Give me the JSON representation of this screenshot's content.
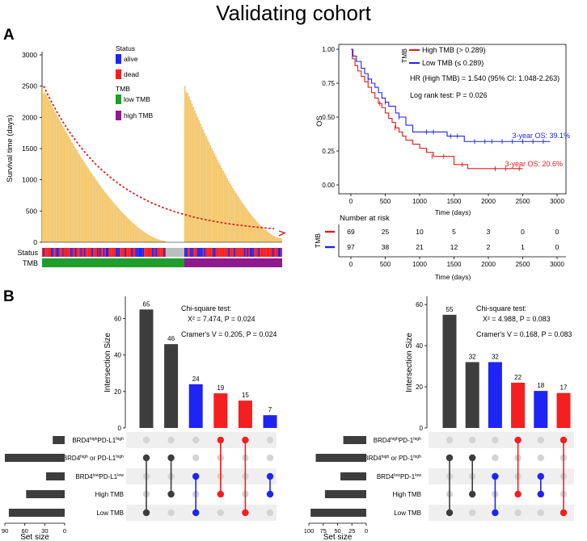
{
  "figure": {
    "title": "Validating cohort",
    "panel_a_label": "A",
    "panel_b_label": "B"
  },
  "colors": {
    "gold": "#f7c96a",
    "gold_edge": "#e8b24a",
    "alive": "#1f24f5",
    "dead": "#f51f1f",
    "low_tmb": "#1f9e2c",
    "high_tmb": "#8e1a8e",
    "dark_bar": "#3d3d3d",
    "km_high": "#e31a1c",
    "km_low": "#1f24f5",
    "dot_grey": "#d4d4d4",
    "row_band": "#efefef"
  },
  "chart_data": [
    {
      "id": "survival_waterfall",
      "type": "bar",
      "ylabel": "Survival time (days)",
      "y_ticks": [
        "0",
        "500",
        "1000",
        "1500",
        "2000",
        "2500",
        "3000"
      ],
      "ylim": [
        0,
        3000
      ],
      "annotation_labels": {
        "status": "Status",
        "tmb": "TMB"
      },
      "legend": {
        "status_title": "Status",
        "alive": "alive",
        "dead": "dead",
        "tmb_title": "TMB",
        "low": "low TMB",
        "high": "high TMB"
      },
      "groups": [
        {
          "name": "low TMB",
          "n": 97,
          "max": 2480,
          "min": 20
        },
        {
          "name": "high TMB",
          "n": 69,
          "max": 2500,
          "min": 60
        }
      ],
      "trend": "decreasing dotted red curve with arrow"
    },
    {
      "id": "km_curve",
      "type": "line",
      "xlabel": "Time (days)",
      "ylabel": "OS",
      "x_ticks": [
        "0",
        "500",
        "1000",
        "1500",
        "2000",
        "2500",
        "3000"
      ],
      "y_ticks": [
        "0.00",
        "0.25",
        "0.50",
        "0.75",
        "1.00"
      ],
      "xlim": [
        0,
        3000
      ],
      "ylim": [
        0,
        1
      ],
      "legend_title": "TMB",
      "series": [
        {
          "name": "High TMB (> 0.289)",
          "points": [
            [
              0,
              1.0
            ],
            [
              20,
              0.93
            ],
            [
              60,
              0.88
            ],
            [
              100,
              0.84
            ],
            [
              150,
              0.8
            ],
            [
              200,
              0.76
            ],
            [
              250,
              0.72
            ],
            [
              300,
              0.68
            ],
            [
              350,
              0.64
            ],
            [
              400,
              0.6
            ],
            [
              450,
              0.57
            ],
            [
              500,
              0.53
            ],
            [
              550,
              0.49
            ],
            [
              600,
              0.46
            ],
            [
              650,
              0.42
            ],
            [
              700,
              0.39
            ],
            [
              750,
              0.36
            ],
            [
              800,
              0.33
            ],
            [
              900,
              0.3
            ],
            [
              1000,
              0.27
            ],
            [
              1100,
              0.24
            ],
            [
              1200,
              0.21
            ],
            [
              1400,
              0.21
            ],
            [
              1500,
              0.15
            ],
            [
              1650,
              0.15
            ],
            [
              1700,
              0.12
            ],
            [
              2500,
              0.12
            ]
          ],
          "censors": [
            [
              420,
              0.6
            ],
            [
              640,
              0.42
            ],
            [
              1180,
              0.21
            ],
            [
              1350,
              0.21
            ],
            [
              1620,
              0.15
            ],
            [
              2100,
              0.12
            ],
            [
              2250,
              0.12
            ],
            [
              2450,
              0.12
            ]
          ],
          "annotation": "3-year OS: 20.6%"
        },
        {
          "name": "Low TMB (≤ 0.289)",
          "points": [
            [
              0,
              1.0
            ],
            [
              30,
              0.95
            ],
            [
              80,
              0.91
            ],
            [
              150,
              0.86
            ],
            [
              200,
              0.82
            ],
            [
              250,
              0.78
            ],
            [
              300,
              0.75
            ],
            [
              350,
              0.72
            ],
            [
              400,
              0.68
            ],
            [
              450,
              0.64
            ],
            [
              500,
              0.61
            ],
            [
              550,
              0.58
            ],
            [
              650,
              0.53
            ],
            [
              700,
              0.5
            ],
            [
              800,
              0.44
            ],
            [
              900,
              0.39
            ],
            [
              1350,
              0.39
            ],
            [
              1400,
              0.36
            ],
            [
              1600,
              0.36
            ],
            [
              1650,
              0.32
            ],
            [
              2900,
              0.32
            ]
          ],
          "censors": [
            [
              250,
              0.78
            ],
            [
              500,
              0.61
            ],
            [
              700,
              0.5
            ],
            [
              1100,
              0.39
            ],
            [
              1200,
              0.39
            ],
            [
              1450,
              0.36
            ],
            [
              1550,
              0.36
            ],
            [
              1800,
              0.32
            ],
            [
              1950,
              0.32
            ],
            [
              2050,
              0.32
            ],
            [
              2200,
              0.32
            ],
            [
              2350,
              0.32
            ],
            [
              2500,
              0.32
            ],
            [
              2650,
              0.32
            ],
            [
              2800,
              0.32
            ]
          ],
          "annotation": "3-year OS: 39.1%"
        }
      ],
      "stats": {
        "hr": "HR (High TMB) = 1.540 (95% CI: 1.048-2.263)",
        "logrank": "Log rank test: P = 0.026"
      },
      "risk_table": {
        "title": "Number at risk",
        "ylabel": "TMB",
        "xlabel": "Time (days)",
        "x_ticks": [
          "0",
          "500",
          "1000",
          "1500",
          "2000",
          "2500",
          "3000"
        ],
        "rows": [
          {
            "name": "High TMB",
            "values": [
              "69",
              "25",
              "10",
              "5",
              "3",
              "0",
              "0"
            ]
          },
          {
            "name": "Low TMB",
            "values": [
              "97",
              "38",
              "21",
              "12",
              "2",
              "1",
              "0"
            ]
          }
        ]
      }
    },
    {
      "id": "upset_pdl1",
      "type": "bar",
      "ylabel": "Intersection Size",
      "y_ticks": [
        "0",
        "20",
        "40",
        "60"
      ],
      "ylim": [
        0,
        70
      ],
      "values": [
        65,
        46,
        24,
        19,
        15,
        7
      ],
      "value_labels": [
        "65",
        "46",
        "24",
        "19",
        "15",
        "7"
      ],
      "bar_colors": [
        "dark",
        "dark",
        "blue",
        "red",
        "red",
        "blue"
      ],
      "stats": [
        "Chi-square test:",
        "X² = 7.474, P = 0.024",
        "Cramer's V = 0.205, P = 0.024"
      ],
      "set_size_label": "Set size",
      "set_size_ticks": [
        "90",
        "60",
        "30",
        "0"
      ],
      "set_size_max": 90,
      "sets": [
        {
          "label_main": "BRD4",
          "label_sup": "high",
          "label_mid": "PD-L1",
          "label_sup2": "high",
          "size": 18
        },
        {
          "label_main": "BRD4",
          "label_sup": "high",
          "label_mid": " or PD-L1",
          "label_sup2": "high",
          "size": 90
        },
        {
          "label_main": "BRD4",
          "label_sup": "low",
          "label_mid": "PD-L1",
          "label_sup2": "low",
          "size": 28
        },
        {
          "label_main": "High TMB",
          "label_sup": "",
          "label_mid": "",
          "label_sup2": "",
          "size": 58
        },
        {
          "label_main": "Low TMB",
          "label_sup": "",
          "label_mid": "",
          "label_sup2": "",
          "size": 84
        }
      ],
      "matrix": [
        [
          1,
          4
        ],
        [
          1,
          3
        ],
        [
          2,
          4
        ],
        [
          0,
          3
        ],
        [
          0,
          4
        ],
        [
          2,
          3
        ]
      ]
    },
    {
      "id": "upset_pd1",
      "type": "bar",
      "ylabel": "Intersection Size",
      "y_ticks": [
        "0",
        "20",
        "40",
        "60"
      ],
      "ylim": [
        0,
        62
      ],
      "values": [
        55,
        32,
        32,
        22,
        18,
        17
      ],
      "value_labels": [
        "55",
        "32",
        "32",
        "22",
        "18",
        "17"
      ],
      "bar_colors": [
        "dark",
        "dark",
        "blue",
        "red",
        "blue",
        "red"
      ],
      "stats": [
        "Chi-square test:",
        "X² = 4.988, P = 0.083",
        "Cramer's V = 0.168, P = 0.083"
      ],
      "set_size_label": "Set size",
      "set_size_ticks": [
        "100",
        "75",
        "50",
        "25",
        "0"
      ],
      "set_size_max": 100,
      "sets": [
        {
          "label_main": "BRD4",
          "label_sup": "high",
          "label_mid": "PD-1",
          "label_sup2": "high",
          "size": 40
        },
        {
          "label_main": "BRD4",
          "label_sup": "high",
          "label_mid": " or PD-1",
          "label_sup2": "high",
          "size": 88
        },
        {
          "label_main": "BRD4",
          "label_sup": "low",
          "label_mid": "PD-1",
          "label_sup2": "low",
          "size": 45
        },
        {
          "label_main": "High TMB",
          "label_sup": "",
          "label_mid": "",
          "label_sup2": "",
          "size": 72
        },
        {
          "label_main": "Low TMB",
          "label_sup": "",
          "label_mid": "",
          "label_sup2": "",
          "size": 97
        }
      ],
      "matrix": [
        [
          1,
          4
        ],
        [
          1,
          3
        ],
        [
          2,
          4
        ],
        [
          0,
          3
        ],
        [
          2,
          3
        ],
        [
          0,
          4
        ]
      ]
    }
  ]
}
